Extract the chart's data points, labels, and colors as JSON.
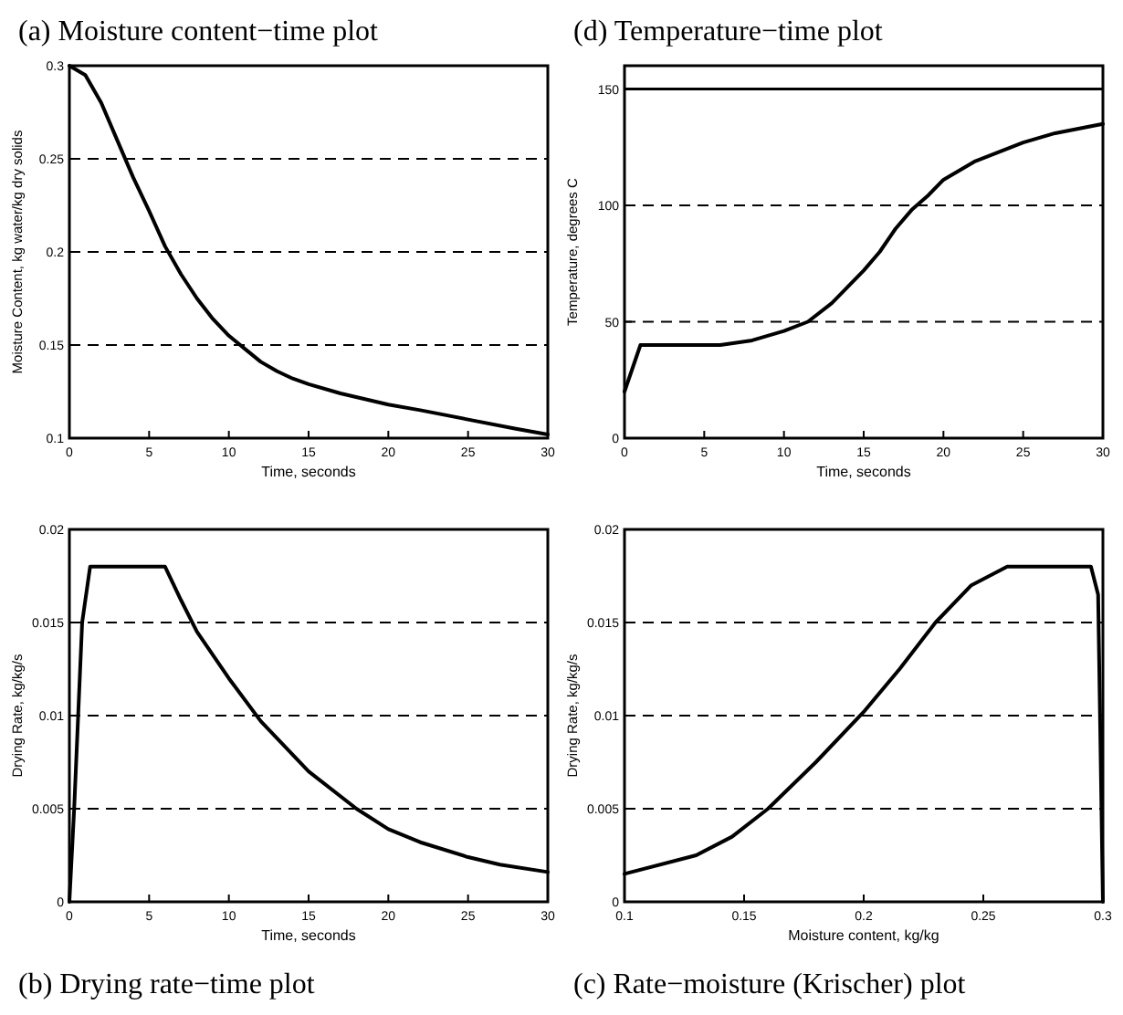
{
  "chart_data": [
    {
      "type": "line",
      "title": "(a) Moisture content−time plot",
      "xlabel": "Time, seconds",
      "ylabel": "Moisture Content, kg water/kg dry solids",
      "xlim": [
        0,
        30
      ],
      "xticks": [
        0,
        5,
        10,
        15,
        20,
        25,
        30
      ],
      "ylim": [
        0.1,
        0.3
      ],
      "yticks": [
        0.1,
        0.15,
        0.2,
        0.25,
        0.3
      ],
      "grid": "y",
      "series": [
        {
          "color": "#000000",
          "x": [
            0,
            1,
            2,
            3,
            4,
            5,
            6,
            7,
            8,
            9,
            10,
            11,
            12,
            13,
            14,
            15,
            17,
            20,
            22,
            25,
            28,
            30
          ],
          "values": [
            0.3,
            0.295,
            0.28,
            0.26,
            0.24,
            0.222,
            0.203,
            0.188,
            0.175,
            0.164,
            0.155,
            0.148,
            0.141,
            0.136,
            0.132,
            0.129,
            0.124,
            0.118,
            0.115,
            0.11,
            0.105,
            0.102
          ]
        }
      ]
    },
    {
      "type": "line",
      "title": "(d) Temperature−time plot",
      "xlabel": "Time, seconds",
      "ylabel": "Temperature, degrees C",
      "xlim": [
        0,
        30
      ],
      "xticks": [
        0,
        5,
        10,
        15,
        20,
        25,
        30
      ],
      "ylim": [
        0,
        160
      ],
      "yticks": [
        0,
        50,
        100,
        150
      ],
      "grid": "y",
      "ref_lines": [
        {
          "axis": "y",
          "value": 150,
          "line_style": "solid",
          "color": "#000000"
        }
      ],
      "series": [
        {
          "color": "#000000",
          "x": [
            0,
            1,
            6,
            8,
            10,
            11.5,
            13,
            15,
            16,
            17,
            18,
            19,
            20,
            22,
            25,
            27,
            30
          ],
          "values": [
            20,
            40,
            40,
            42,
            46,
            50,
            58,
            72,
            80,
            90,
            98,
            104,
            111,
            119,
            127,
            131,
            135
          ]
        }
      ]
    },
    {
      "type": "line",
      "title": "(b) Drying rate−time plot",
      "xlabel": "Time, seconds",
      "ylabel": "Drying Rate, kg/kg/s",
      "xlim": [
        0,
        30
      ],
      "xticks": [
        0,
        5,
        10,
        15,
        20,
        25,
        30
      ],
      "ylim": [
        0,
        0.02
      ],
      "yticks": [
        0,
        0.005,
        0.01,
        0.015,
        0.02
      ],
      "grid": "y",
      "series": [
        {
          "color": "#000000",
          "x": [
            0,
            0.3,
            0.8,
            1.3,
            6,
            7,
            8,
            10,
            12,
            15,
            18,
            20,
            22,
            25,
            27,
            30
          ],
          "values": [
            0,
            0.005,
            0.015,
            0.018,
            0.018,
            0.0162,
            0.0145,
            0.012,
            0.0097,
            0.007,
            0.005,
            0.0039,
            0.0032,
            0.0024,
            0.002,
            0.0016
          ]
        }
      ]
    },
    {
      "type": "line",
      "title": "(c) Rate−moisture (Krischer) plot",
      "xlabel": "Moisture content, kg/kg",
      "ylabel": "Drying Rate, kg/kg/s",
      "xlim": [
        0.1,
        0.3
      ],
      "xticks": [
        0.1,
        0.15,
        0.2,
        0.25,
        0.3
      ],
      "ylim": [
        0,
        0.02
      ],
      "yticks": [
        0,
        0.005,
        0.01,
        0.015,
        0.02
      ],
      "grid": "y",
      "series": [
        {
          "color": "#000000",
          "x": [
            0.1,
            0.13,
            0.145,
            0.16,
            0.18,
            0.2,
            0.215,
            0.23,
            0.245,
            0.26,
            0.295,
            0.298,
            0.3
          ],
          "values": [
            0.0015,
            0.0025,
            0.0035,
            0.005,
            0.0075,
            0.0102,
            0.0125,
            0.015,
            0.017,
            0.018,
            0.018,
            0.0165,
            0
          ]
        }
      ]
    }
  ]
}
